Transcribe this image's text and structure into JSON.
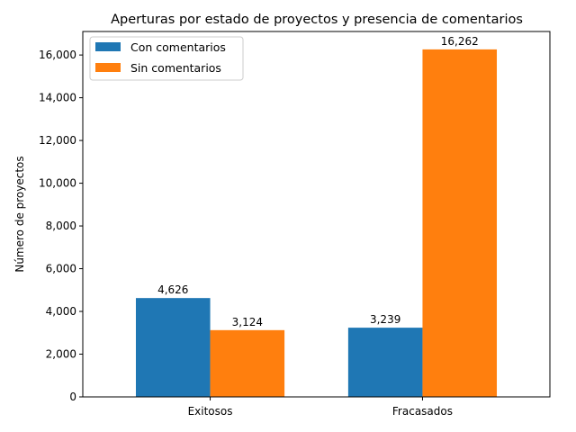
{
  "chart_data": {
    "type": "bar",
    "title": "Aperturas por estado de proyectos y presencia de comentarios",
    "xlabel": "",
    "ylabel": "Número de proyectos",
    "categories": [
      "Exitosos",
      "Fracasados"
    ],
    "series": [
      {
        "name": "Con comentarios",
        "values": [
          4626,
          3239
        ],
        "labels": [
          "4,626",
          "3,239"
        ],
        "color": "#1f77b4"
      },
      {
        "name": "Sin comentarios",
        "values": [
          3124,
          16262
        ],
        "labels": [
          "3,124",
          "16,262"
        ],
        "color": "#ff7f0e"
      }
    ],
    "ylim": [
      0,
      17100
    ],
    "yticks": [
      0,
      2000,
      4000,
      6000,
      8000,
      10000,
      12000,
      14000,
      16000
    ],
    "ytick_labels": [
      "0",
      "2,000",
      "4,000",
      "6,000",
      "8,000",
      "10,000",
      "12,000",
      "14,000",
      "16,000"
    ],
    "grid": false,
    "legend_position": "top-left"
  }
}
